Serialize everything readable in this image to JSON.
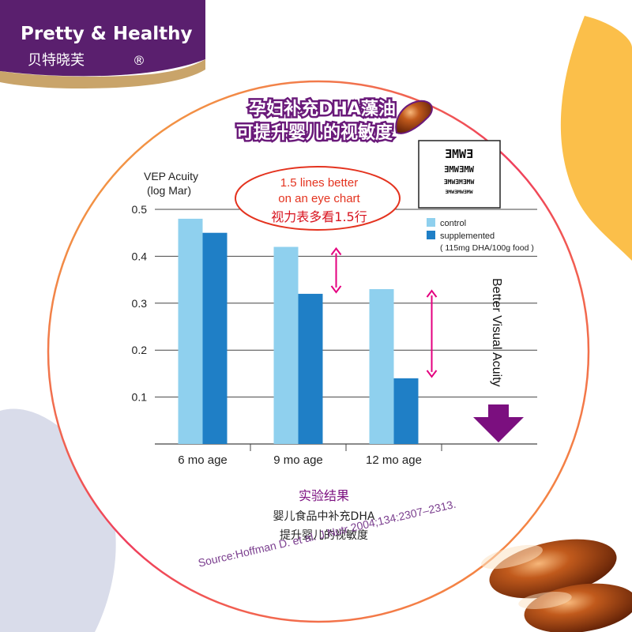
{
  "brand": {
    "name_en": "Pretty & Healthy",
    "name_cn": "贝特晓芙",
    "registered_mark": "®",
    "colors": {
      "primary": "#5a1f6e",
      "gold": "#c9a46a"
    }
  },
  "headline": {
    "line1": "孕妇补充DHA藻油",
    "line2": "可提升婴儿的视敏度"
  },
  "callout": {
    "line1": "1.5 lines better",
    "line2": "on an eye chart",
    "line3": "视力表多看1.5行"
  },
  "eye_chart": {
    "rows": [
      "ƎMWƎ",
      "ƎMWƎMW",
      "ƎMWƎMƎMW",
      "ƎMWƎMWƎMW"
    ]
  },
  "side_label": "Better Visual Acuity",
  "results": {
    "title": "实验结果",
    "line1": "婴儿食品中补充DHA",
    "line2": "提升婴儿的视敏度"
  },
  "source": "Source:Hoffman D. et al. J Nutr 2004;134:2307–2313.",
  "chart_data": {
    "type": "bar",
    "ylabel_line1": "VEP Acuity",
    "ylabel_line2": "(log Mar)",
    "categories": [
      "6 mo age",
      "9 mo age",
      "12 mo age"
    ],
    "ylim": [
      0,
      0.5
    ],
    "yticks": [
      "0.1",
      "0.2",
      "0.3",
      "0.4",
      "0.5"
    ],
    "grid": true,
    "series": [
      {
        "name": "control",
        "values": [
          0.48,
          0.42,
          0.33
        ],
        "color": "#8fd0ee"
      },
      {
        "name": "supplemented",
        "values": [
          0.45,
          0.32,
          0.14
        ],
        "color": "#1f7fc6"
      }
    ],
    "legend_note": "( 115mg DHA/100g food )",
    "legend_position": "top-right",
    "colors": {
      "arrow": "#e4007f",
      "accent": "#7b0f7f"
    }
  }
}
